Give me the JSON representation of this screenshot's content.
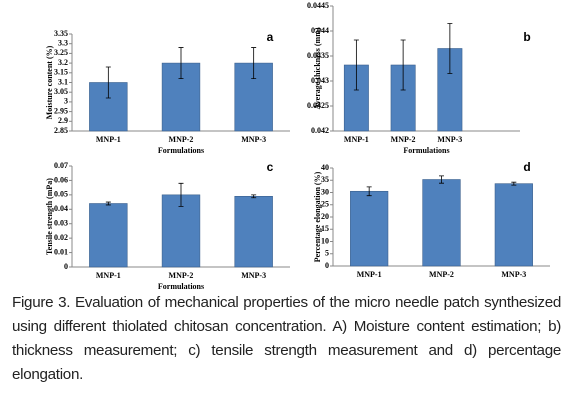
{
  "chart_data": [
    {
      "type": "bar",
      "panel_label": "a",
      "ylabel": "Moisture content (%)",
      "xlabel": "Formulations",
      "categories": [
        "MNP-1",
        "MNP-2",
        "MNP-3"
      ],
      "series": [
        {
          "color": "#4f81bd",
          "values": [
            3.1,
            3.2,
            3.2
          ],
          "errors": [
            0.08,
            0.08,
            0.08
          ]
        }
      ],
      "ylim": [
        2.85,
        3.35
      ],
      "yticks": [
        2.85,
        2.9,
        2.95,
        3,
        3.05,
        3.1,
        3.15,
        3.2,
        3.25,
        3.3,
        3.35
      ]
    },
    {
      "type": "bar",
      "panel_label": "b",
      "ylabel": "Average thickness (mm)",
      "xlabel": "Formulations",
      "categories": [
        "MNP-1",
        "MNP-2",
        "MNP-3",
        null
      ],
      "series": [
        {
          "color": "#4f81bd",
          "values": [
            0.04332,
            0.04332,
            0.04365,
            null
          ],
          "errors": [
            0.0005,
            0.0005,
            0.0005,
            null
          ]
        }
      ],
      "ylim": [
        0.042,
        0.0445
      ],
      "yticks": [
        0.042,
        0.0425,
        0.043,
        0.0435,
        0.044,
        0.0445
      ]
    },
    {
      "type": "bar",
      "panel_label": "c",
      "ylabel": "Tensile strength (mPa)",
      "xlabel": "Formulations",
      "categories": [
        "MNP-1",
        "MNP-2",
        "MNP-3"
      ],
      "series": [
        {
          "color": "#4f81bd",
          "values": [
            0.044,
            0.05,
            0.049
          ],
          "errors": [
            0.001,
            0.008,
            0.001
          ]
        }
      ],
      "ylim": [
        0,
        0.07
      ],
      "yticks": [
        0,
        0.01,
        0.02,
        0.03,
        0.04,
        0.05,
        0.06,
        0.07
      ]
    },
    {
      "type": "bar",
      "panel_label": "d",
      "ylabel": "Percentage elongation (%)",
      "categories": [
        "MNP-1",
        "MNP-2",
        "MNP-3"
      ],
      "series": [
        {
          "color": "#4f81bd",
          "values": [
            30.5,
            35.3,
            33.6
          ],
          "errors": [
            1.8,
            1.5,
            0.6
          ]
        }
      ],
      "ylim": [
        0,
        40
      ],
      "yticks": [
        0,
        5,
        10,
        15,
        20,
        25,
        30,
        35,
        40
      ]
    }
  ],
  "caption": {
    "label": "Figure 3.",
    "text": "Evaluation of mechanical properties of the micro needle patch synthesized using different thiolated chitosan concentration. A) Moisture content estimation; b) thickness measurement; c) tensile strength measurement and d) percentage elongation."
  }
}
